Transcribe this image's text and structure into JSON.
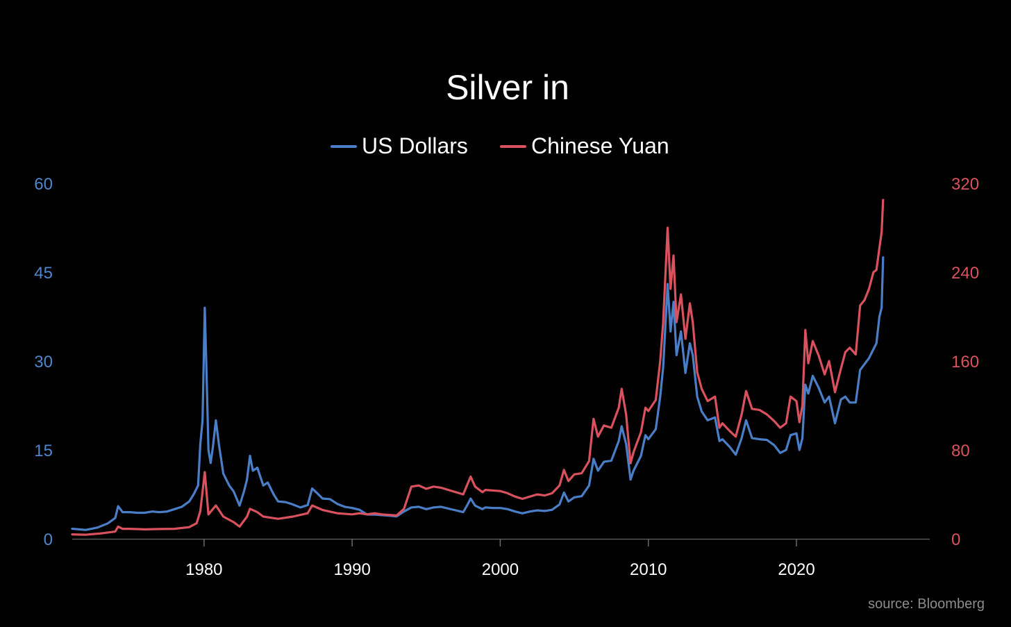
{
  "chart_data": {
    "type": "line",
    "title": "Silver in",
    "source": "source: Bloomberg",
    "legend_position": "top-center",
    "grid": false,
    "x_axis": {
      "range": [
        1971.1,
        2029
      ],
      "ticks": [
        1980,
        1990,
        2000,
        2010,
        2020
      ],
      "tick_labels": [
        "1980",
        "1990",
        "2000",
        "2010",
        "2020"
      ]
    },
    "y_axis_left": {
      "range": [
        0,
        60
      ],
      "ticks": [
        0,
        15,
        30,
        45,
        60
      ],
      "tick_labels": [
        "0",
        "15",
        "30",
        "45",
        "60"
      ],
      "color": "#4f86cc"
    },
    "y_axis_right": {
      "range": [
        0,
        320
      ],
      "ticks": [
        0,
        80,
        160,
        240,
        320
      ],
      "tick_labels": [
        "0",
        "80",
        "160",
        "240",
        "320"
      ],
      "color": "#d9525e"
    },
    "series": [
      {
        "name": "US Dollars",
        "axis": "left",
        "color": "#4a7fc8",
        "points": [
          [
            1971.1,
            1.7
          ],
          [
            1972.0,
            1.5
          ],
          [
            1972.8,
            1.9
          ],
          [
            1973.5,
            2.6
          ],
          [
            1974.0,
            3.5
          ],
          [
            1974.2,
            5.5
          ],
          [
            1974.5,
            4.5
          ],
          [
            1975.0,
            4.5
          ],
          [
            1975.5,
            4.4
          ],
          [
            1976.0,
            4.4
          ],
          [
            1976.5,
            4.6
          ],
          [
            1977.0,
            4.5
          ],
          [
            1977.5,
            4.6
          ],
          [
            1978.0,
            5.0
          ],
          [
            1978.5,
            5.4
          ],
          [
            1979.0,
            6.3
          ],
          [
            1979.3,
            7.5
          ],
          [
            1979.6,
            9.0
          ],
          [
            1979.75,
            16.0
          ],
          [
            1979.9,
            20.0
          ],
          [
            1980.05,
            39.0
          ],
          [
            1980.15,
            30.0
          ],
          [
            1980.3,
            15.0
          ],
          [
            1980.45,
            12.8
          ],
          [
            1980.6,
            15.5
          ],
          [
            1980.8,
            20.0
          ],
          [
            1981.0,
            16.0
          ],
          [
            1981.3,
            11.0
          ],
          [
            1981.7,
            9.0
          ],
          [
            1982.0,
            8.0
          ],
          [
            1982.4,
            5.6
          ],
          [
            1982.7,
            8.0
          ],
          [
            1982.9,
            10.0
          ],
          [
            1983.1,
            14.0
          ],
          [
            1983.3,
            11.5
          ],
          [
            1983.6,
            12.0
          ],
          [
            1984.0,
            9.0
          ],
          [
            1984.3,
            9.5
          ],
          [
            1984.7,
            7.5
          ],
          [
            1985.0,
            6.3
          ],
          [
            1985.5,
            6.2
          ],
          [
            1986.0,
            5.8
          ],
          [
            1986.5,
            5.3
          ],
          [
            1987.0,
            5.7
          ],
          [
            1987.3,
            8.5
          ],
          [
            1987.6,
            7.8
          ],
          [
            1988.0,
            6.8
          ],
          [
            1988.5,
            6.7
          ],
          [
            1989.0,
            5.9
          ],
          [
            1989.5,
            5.4
          ],
          [
            1990.0,
            5.2
          ],
          [
            1990.5,
            4.9
          ],
          [
            1991.0,
            4.1
          ],
          [
            1991.5,
            4.1
          ],
          [
            1992.0,
            4.0
          ],
          [
            1992.5,
            3.9
          ],
          [
            1993.0,
            3.8
          ],
          [
            1993.5,
            4.6
          ],
          [
            1994.0,
            5.3
          ],
          [
            1994.5,
            5.4
          ],
          [
            1995.0,
            5.0
          ],
          [
            1995.5,
            5.3
          ],
          [
            1996.0,
            5.4
          ],
          [
            1996.5,
            5.1
          ],
          [
            1997.0,
            4.8
          ],
          [
            1997.5,
            4.5
          ],
          [
            1997.8,
            5.8
          ],
          [
            1998.0,
            6.8
          ],
          [
            1998.3,
            5.6
          ],
          [
            1998.8,
            5.0
          ],
          [
            1999.0,
            5.3
          ],
          [
            1999.5,
            5.2
          ],
          [
            2000.0,
            5.2
          ],
          [
            2000.5,
            5.0
          ],
          [
            2001.0,
            4.6
          ],
          [
            2001.5,
            4.3
          ],
          [
            2002.0,
            4.6
          ],
          [
            2002.5,
            4.8
          ],
          [
            2003.0,
            4.7
          ],
          [
            2003.5,
            4.9
          ],
          [
            2004.0,
            5.8
          ],
          [
            2004.3,
            7.8
          ],
          [
            2004.6,
            6.3
          ],
          [
            2005.0,
            7.0
          ],
          [
            2005.5,
            7.2
          ],
          [
            2006.0,
            9.0
          ],
          [
            2006.3,
            13.5
          ],
          [
            2006.6,
            11.5
          ],
          [
            2007.0,
            13.0
          ],
          [
            2007.5,
            13.2
          ],
          [
            2008.0,
            16.5
          ],
          [
            2008.2,
            19.0
          ],
          [
            2008.5,
            16.0
          ],
          [
            2008.8,
            10.0
          ],
          [
            2009.0,
            11.5
          ],
          [
            2009.5,
            14.0
          ],
          [
            2009.8,
            17.5
          ],
          [
            2010.0,
            16.8
          ],
          [
            2010.5,
            18.5
          ],
          [
            2010.8,
            24.0
          ],
          [
            2011.0,
            29.0
          ],
          [
            2011.3,
            43.0
          ],
          [
            2011.5,
            35.0
          ],
          [
            2011.7,
            40.0
          ],
          [
            2011.9,
            31.0
          ],
          [
            2012.2,
            35.0
          ],
          [
            2012.5,
            28.0
          ],
          [
            2012.8,
            33.0
          ],
          [
            2013.0,
            31.0
          ],
          [
            2013.3,
            24.0
          ],
          [
            2013.6,
            21.5
          ],
          [
            2014.0,
            20.0
          ],
          [
            2014.5,
            20.5
          ],
          [
            2014.8,
            16.5
          ],
          [
            2015.0,
            16.8
          ],
          [
            2015.5,
            15.5
          ],
          [
            2015.9,
            14.2
          ],
          [
            2016.3,
            17.0
          ],
          [
            2016.6,
            20.0
          ],
          [
            2017.0,
            17.0
          ],
          [
            2017.5,
            16.8
          ],
          [
            2018.0,
            16.7
          ],
          [
            2018.5,
            15.8
          ],
          [
            2018.9,
            14.5
          ],
          [
            2019.3,
            15.0
          ],
          [
            2019.6,
            17.5
          ],
          [
            2020.0,
            17.8
          ],
          [
            2020.2,
            15.0
          ],
          [
            2020.4,
            17.0
          ],
          [
            2020.6,
            26.0
          ],
          [
            2020.8,
            24.5
          ],
          [
            2021.1,
            27.5
          ],
          [
            2021.5,
            25.5
          ],
          [
            2021.9,
            23.0
          ],
          [
            2022.2,
            24.0
          ],
          [
            2022.6,
            19.5
          ],
          [
            2023.0,
            23.5
          ],
          [
            2023.3,
            24.0
          ],
          [
            2023.6,
            23.0
          ],
          [
            2024.0,
            23.0
          ],
          [
            2024.3,
            28.5
          ],
          [
            2024.6,
            29.5
          ],
          [
            2024.9,
            30.5
          ],
          [
            2025.2,
            32.0
          ],
          [
            2025.4,
            33.0
          ],
          [
            2025.6,
            37.5
          ],
          [
            2025.75,
            39.0
          ],
          [
            2025.85,
            47.5
          ]
        ]
      },
      {
        "name": "Chinese Yuan",
        "axis": "right",
        "color": "#d9525e",
        "points": [
          [
            1971.1,
            4.0
          ],
          [
            1972.0,
            3.7
          ],
          [
            1973.0,
            4.8
          ],
          [
            1974.0,
            6.5
          ],
          [
            1974.2,
            11.0
          ],
          [
            1974.5,
            9.0
          ],
          [
            1975.0,
            9.0
          ],
          [
            1976.0,
            8.5
          ],
          [
            1977.0,
            8.8
          ],
          [
            1978.0,
            9.0
          ],
          [
            1979.0,
            10.5
          ],
          [
            1979.5,
            14.0
          ],
          [
            1979.75,
            25.0
          ],
          [
            1980.05,
            60.0
          ],
          [
            1980.3,
            22.0
          ],
          [
            1980.8,
            30.0
          ],
          [
            1981.3,
            20.0
          ],
          [
            1982.0,
            15.0
          ],
          [
            1982.4,
            11.0
          ],
          [
            1982.9,
            20.0
          ],
          [
            1983.1,
            27.0
          ],
          [
            1983.6,
            24.0
          ],
          [
            1984.0,
            20.0
          ],
          [
            1985.0,
            18.0
          ],
          [
            1986.0,
            20.0
          ],
          [
            1987.0,
            23.0
          ],
          [
            1987.3,
            30.0
          ],
          [
            1988.0,
            26.0
          ],
          [
            1989.0,
            23.0
          ],
          [
            1990.0,
            22.0
          ],
          [
            1990.5,
            23.0
          ],
          [
            1991.0,
            22.0
          ],
          [
            1991.5,
            23.0
          ],
          [
            1992.0,
            22.0
          ],
          [
            1993.0,
            21.0
          ],
          [
            1993.5,
            27.0
          ],
          [
            1994.0,
            47.0
          ],
          [
            1994.5,
            48.0
          ],
          [
            1995.0,
            45.0
          ],
          [
            1995.5,
            47.0
          ],
          [
            1996.0,
            46.0
          ],
          [
            1996.5,
            44.0
          ],
          [
            1997.0,
            42.0
          ],
          [
            1997.5,
            40.0
          ],
          [
            1998.0,
            56.0
          ],
          [
            1998.3,
            47.0
          ],
          [
            1998.8,
            42.0
          ],
          [
            1999.0,
            44.0
          ],
          [
            2000.0,
            43.0
          ],
          [
            2000.5,
            41.0
          ],
          [
            2001.0,
            38.0
          ],
          [
            2001.5,
            36.0
          ],
          [
            2002.0,
            38.0
          ],
          [
            2002.5,
            40.0
          ],
          [
            2003.0,
            39.0
          ],
          [
            2003.5,
            41.0
          ],
          [
            2004.0,
            48.0
          ],
          [
            2004.3,
            62.0
          ],
          [
            2004.6,
            52.0
          ],
          [
            2005.0,
            58.0
          ],
          [
            2005.5,
            59.0
          ],
          [
            2006.0,
            70.0
          ],
          [
            2006.3,
            108.0
          ],
          [
            2006.6,
            92.0
          ],
          [
            2007.0,
            102.0
          ],
          [
            2007.5,
            100.0
          ],
          [
            2008.0,
            118.0
          ],
          [
            2008.2,
            135.0
          ],
          [
            2008.5,
            112.0
          ],
          [
            2008.8,
            68.0
          ],
          [
            2009.0,
            78.0
          ],
          [
            2009.5,
            96.0
          ],
          [
            2009.8,
            118.0
          ],
          [
            2010.0,
            115.0
          ],
          [
            2010.5,
            125.0
          ],
          [
            2010.8,
            160.0
          ],
          [
            2011.0,
            195.0
          ],
          [
            2011.3,
            280.0
          ],
          [
            2011.5,
            225.0
          ],
          [
            2011.7,
            255.0
          ],
          [
            2011.9,
            195.0
          ],
          [
            2012.2,
            220.0
          ],
          [
            2012.5,
            180.0
          ],
          [
            2012.8,
            212.0
          ],
          [
            2013.0,
            195.0
          ],
          [
            2013.3,
            150.0
          ],
          [
            2013.6,
            135.0
          ],
          [
            2014.0,
            124.0
          ],
          [
            2014.5,
            128.0
          ],
          [
            2014.8,
            100.0
          ],
          [
            2015.0,
            104.0
          ],
          [
            2015.5,
            97.0
          ],
          [
            2015.9,
            92.0
          ],
          [
            2016.3,
            112.0
          ],
          [
            2016.6,
            133.0
          ],
          [
            2017.0,
            117.0
          ],
          [
            2017.5,
            116.0
          ],
          [
            2018.0,
            112.0
          ],
          [
            2018.5,
            106.0
          ],
          [
            2018.9,
            100.0
          ],
          [
            2019.3,
            104.0
          ],
          [
            2019.6,
            128.0
          ],
          [
            2020.0,
            124.0
          ],
          [
            2020.2,
            105.0
          ],
          [
            2020.4,
            120.0
          ],
          [
            2020.6,
            188.0
          ],
          [
            2020.8,
            158.0
          ],
          [
            2021.1,
            178.0
          ],
          [
            2021.5,
            165.0
          ],
          [
            2021.9,
            148.0
          ],
          [
            2022.2,
            160.0
          ],
          [
            2022.6,
            132.0
          ],
          [
            2022.9,
            148.0
          ],
          [
            2023.3,
            168.0
          ],
          [
            2023.6,
            172.0
          ],
          [
            2024.0,
            166.0
          ],
          [
            2024.3,
            210.0
          ],
          [
            2024.6,
            215.0
          ],
          [
            2024.9,
            225.0
          ],
          [
            2025.2,
            240.0
          ],
          [
            2025.4,
            242.0
          ],
          [
            2025.6,
            262.0
          ],
          [
            2025.75,
            276.0
          ],
          [
            2025.85,
            305.0
          ]
        ]
      }
    ]
  }
}
